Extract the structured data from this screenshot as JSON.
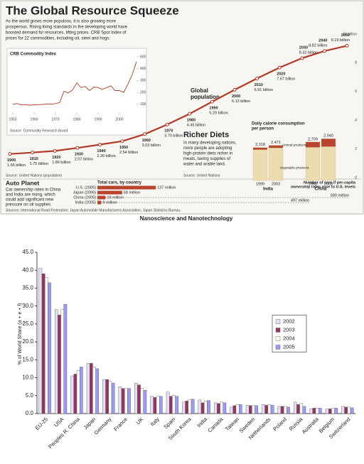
{
  "infographic": {
    "title": "The Global Resource Squeeze",
    "intro": [
      "As the world grows more populous, it is also growing more",
      "prosperous. Rising living standards in the developing world have",
      "boosted demand for resources, lifting prices. CRB Spot Index of",
      "prices for 22 commodities, including oil, steel and hogs:"
    ],
    "sources": "Sources: International Road Federation; Japan Automobile Manufacturers Association; Japan Statistics Bureau."
  },
  "chart_data": [
    {
      "type": "line",
      "annotation": [
        "Global",
        "population"
      ],
      "source": "Source: United Nations (population)",
      "color": "#b23a26",
      "x": [
        1900,
        1910,
        1920,
        1930,
        1940,
        1950,
        1960,
        1970,
        1980,
        1990,
        2000,
        2010,
        2020,
        2030,
        2040,
        2050
      ],
      "values": [
        1.65,
        1.75,
        1.86,
        2.07,
        2.3,
        2.54,
        3.03,
        3.7,
        4.45,
        5.29,
        6.12,
        6.91,
        7.67,
        8.32,
        8.82,
        9.19
      ],
      "value_labels": [
        "1.65 billion",
        "1.75 billion",
        "1.86 billion",
        "2.07 billion",
        "2.30 billion",
        "2.54 billion",
        "3.03 billion",
        "3.70 billion",
        "4.45 billion",
        "5.29 billion",
        "6.12 billion",
        "6.91 billion",
        "7.67 billion",
        "8.32 billion",
        "8.82 billion",
        "9.19 billion"
      ],
      "xlim": [
        1900,
        2050
      ],
      "ylim": [
        0,
        10
      ],
      "yticks": [
        {
          "value": 10,
          "label": "10 billion"
        },
        8,
        6,
        4,
        2,
        0
      ]
    },
    {
      "type": "line",
      "title": "CRB Commodity Index",
      "source": "Source: Commodity Research Board",
      "color": "#b23a26",
      "x": [
        1950,
        1952,
        1954,
        1956,
        1958,
        1960,
        1962,
        1964,
        1966,
        1968,
        1970,
        1972,
        1974,
        1976,
        1978,
        1980,
        1982,
        1984,
        1986,
        1988,
        1990,
        1992,
        1994,
        1996,
        1998,
        2000,
        2002,
        2004,
        2006,
        2008
      ],
      "values": [
        100,
        105,
        95,
        97,
        92,
        95,
        96,
        98,
        102,
        100,
        105,
        115,
        210,
        195,
        220,
        280,
        240,
        250,
        215,
        245,
        240,
        225,
        240,
        255,
        215,
        215,
        200,
        270,
        350,
        460
      ],
      "xlim": [
        1950,
        2008
      ],
      "xticks": [
        1950,
        1960,
        1970,
        1980,
        1990,
        2000
      ],
      "ylim": [
        80,
        500
      ],
      "yticks": [
        500,
        400,
        300,
        200,
        100
      ]
    },
    {
      "type": "bar",
      "stacked": true,
      "heading": "Richer Diets",
      "text": [
        "In many developing nations,",
        "more people are adopting",
        "high-protein diets richer in",
        "meats, taxing supplies of",
        "water and arable land."
      ],
      "source": "Source: United Nations",
      "title": [
        "Daily calorie consumption",
        "per person"
      ],
      "categories": [
        "1990",
        "2003",
        "1990",
        "2003"
      ],
      "groups": [
        "India",
        "China"
      ],
      "series": [
        {
          "name": "Vegetable products",
          "color": "#ecdcb0",
          "values": [
            2168,
            2291,
            2329,
            2380
          ]
        },
        {
          "name": "Animal products",
          "color": "#b9452f",
          "values": [
            150,
            180,
            380,
            560
          ]
        }
      ],
      "totals": [
        2318,
        2471,
        2709,
        2940
      ],
      "total_labels": [
        "2,318",
        "2,471",
        "2,709",
        "2,940"
      ],
      "ylim": [
        0,
        3000
      ]
    },
    {
      "type": "barh",
      "heading": "Auto Planet",
      "text": [
        "Car ownership rates in China",
        "and India are rising, which",
        "could add significant new",
        "pressure on oil supplies."
      ],
      "title": "Total cars, by country",
      "color": "#b9452f",
      "categories": [
        "U.S. (2005)",
        "Japan (2006)",
        "China (2005)",
        "India (2005)"
      ],
      "values": [
        137,
        58,
        19,
        9
      ],
      "value_labels": [
        "137 million",
        "58 million",
        "19 million",
        "9 million"
      ],
      "projection_title": [
        "Number of cars if per-capita",
        "ownership rates rose to U.S. levels"
      ],
      "projections": [
        null,
        null,
        590,
        497
      ],
      "projection_labels": [
        null,
        null,
        "590 million",
        "497 million"
      ],
      "xlim": [
        0,
        600
      ]
    },
    {
      "type": "bar",
      "title": "Nanoscience and Nanotechnology",
      "ylabel": "% of World Share (a + e + f)",
      "categories": [
        "EU-25",
        "USA",
        "Peoples R. China",
        "Japan",
        "Germany",
        "France",
        "UK",
        "Italy",
        "Spain",
        "South Korea",
        "India",
        "Canada",
        "Taiwan",
        "Sweden",
        "Netherlands",
        "Poland",
        "Russia",
        "Australia",
        "Belgium",
        "Switzerland"
      ],
      "series": [
        {
          "name": "2002",
          "color": "#e4e0f4",
          "values": [
            40.5,
            29,
            10.5,
            14,
            9.5,
            7.5,
            8.5,
            4.8,
            6,
            3.2,
            3.8,
            3,
            1.8,
            2.3,
            2.5,
            2,
            3.2,
            1.3,
            1.3,
            2
          ]
        },
        {
          "name": "2003",
          "color": "#993366",
          "values": [
            39,
            27.5,
            11,
            14,
            9.5,
            7,
            8,
            4.5,
            4.8,
            3.5,
            3,
            2.8,
            2.2,
            2.2,
            2.3,
            2,
            2.5,
            1.5,
            1.3,
            1.8
          ]
        },
        {
          "name": "2004",
          "color": "#fffff0",
          "values": [
            38,
            29,
            12,
            13,
            9,
            7,
            7,
            4.8,
            5,
            3.8,
            3.5,
            3.2,
            2.5,
            2.2,
            2.5,
            2,
            2.8,
            1.5,
            1.5,
            1.8
          ]
        },
        {
          "name": "2005",
          "color": "#9999ff",
          "values": [
            36.5,
            30.5,
            13,
            12.5,
            8.5,
            7,
            6.5,
            4.8,
            4.8,
            4,
            3.6,
            3,
            2.5,
            2.2,
            2.3,
            1.8,
            2,
            1.5,
            1.5,
            1.6
          ]
        }
      ],
      "ylim": [
        0,
        45
      ],
      "yticks": [
        {
          "value": 0,
          "label": "0.0"
        },
        {
          "value": 5,
          "label": "5.0"
        },
        {
          "value": 10,
          "label": "10.0"
        },
        {
          "value": 15,
          "label": "15.0"
        },
        {
          "value": 20,
          "label": "20.0"
        },
        {
          "value": 25,
          "label": "25.0"
        },
        {
          "value": 30,
          "label": "30.0"
        },
        {
          "value": 35,
          "label": "35.0"
        },
        {
          "value": 40,
          "label": "40.0"
        },
        {
          "value": 45,
          "label": "45.0"
        }
      ],
      "legend": "right",
      "grid": false
    }
  ]
}
